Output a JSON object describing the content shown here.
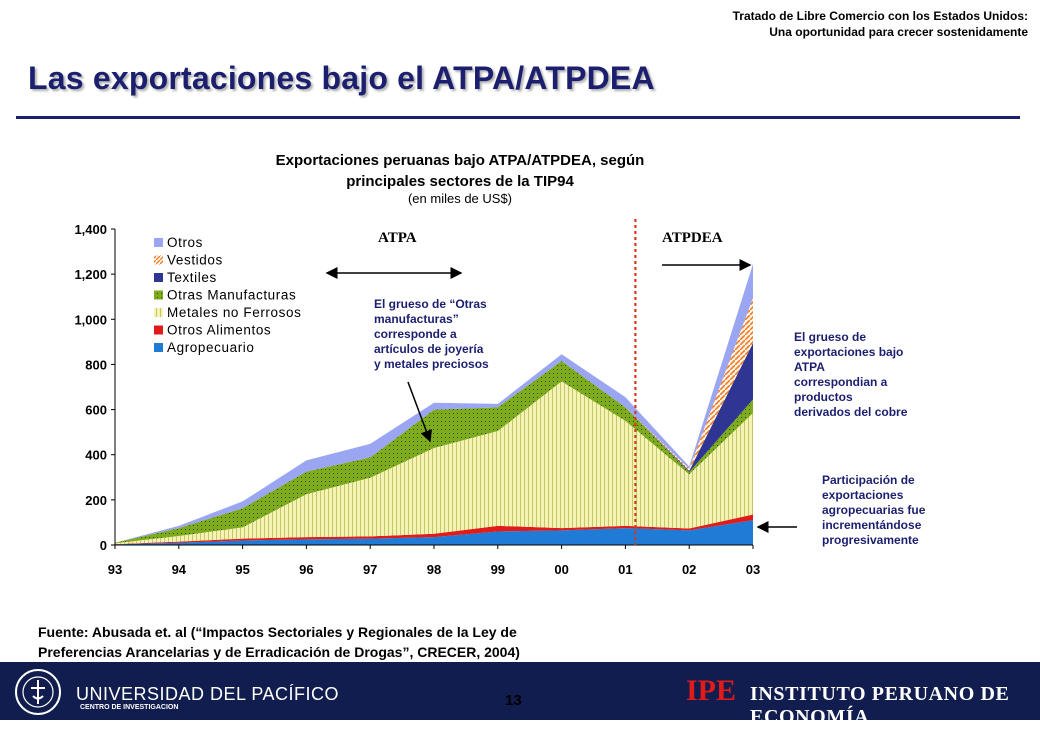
{
  "header": {
    "line1": "Tratado de Libre Comercio con los Estados Unidos:",
    "line2": "Una oportunidad  para crecer sostenidamente"
  },
  "slide_title": "Las exportaciones bajo el ATPA/ATPDEA",
  "chart_data": {
    "type": "area",
    "title_line1": "Exportaciones peruanas bajo ATPA/ATPDEA, según",
    "title_line2": "principales sectores de la TIP94",
    "subtitle": "(en miles de US$)",
    "x": [
      "93",
      "94",
      "95",
      "96",
      "97",
      "98",
      "99",
      "00",
      "01",
      "02",
      "03"
    ],
    "y_ticks": [
      "0",
      "200",
      "400",
      "600",
      "800",
      "1,000",
      "1,200",
      "1,400"
    ],
    "ylim": [
      0,
      1400
    ],
    "stacked": true,
    "series": [
      {
        "name": "Agropecuario",
        "color": "#1f7bd6",
        "values": [
          3,
          10,
          20,
          25,
          28,
          35,
          60,
          65,
          75,
          65,
          110
        ]
      },
      {
        "name": "Otros Alimentos",
        "color": "#e11a1a",
        "values": [
          1,
          5,
          8,
          10,
          10,
          15,
          25,
          10,
          10,
          8,
          25
        ]
      },
      {
        "name": "Metales no Ferrosos",
        "color": "#efefa0",
        "values": [
          4,
          25,
          50,
          190,
          260,
          380,
          420,
          650,
          465,
          240,
          450
        ]
      },
      {
        "name": "Otras Manufacturas",
        "color": "#7dab1c",
        "values": [
          2,
          35,
          85,
          100,
          90,
          170,
          105,
          90,
          60,
          10,
          60
        ]
      },
      {
        "name": "Textiles",
        "color": "#2e3592",
        "values": [
          0,
          0,
          0,
          0,
          0,
          0,
          0,
          0,
          0,
          5,
          250
        ]
      },
      {
        "name": "Vestidos",
        "color": "#f29a52",
        "values": [
          0,
          0,
          0,
          0,
          0,
          0,
          0,
          0,
          0,
          10,
          200
        ]
      },
      {
        "name": "Otros",
        "color": "#9aa6f2",
        "values": [
          0,
          10,
          30,
          50,
          60,
          30,
          15,
          30,
          45,
          10,
          150
        ]
      }
    ],
    "legend_order": [
      "Otros",
      "Vestidos",
      "Textiles",
      "Otras Manufacturas",
      "Metales no Ferrosos",
      "Otros Alimentos",
      "Agropecuario"
    ],
    "legend_position": "top-left",
    "divider_after": "01",
    "era_labels": {
      "atpa": "ATPA",
      "atpdea": "ATPDEA"
    }
  },
  "annotations": {
    "otras_manufacturas": [
      "El grueso de “Otras",
      "manufacturas”",
      "corresponde a",
      "artículos de joyería",
      "y metales preciosos"
    ],
    "cobre": [
      "El grueso de",
      "exportaciones bajo",
      "ATPA",
      "correspondian a",
      "productos",
      "derivados del cobre"
    ],
    "agro": [
      "Participación de",
      "exportaciones",
      "agropecuarias fue",
      "incrementándose",
      "progresivamente"
    ]
  },
  "source": {
    "line1": "Fuente: Abusada et. al (“Impactos Sectoriales y Regionales de la Ley de",
    "line2": "Preferencias Arancelarias y de Erradicación de Drogas”, CRECER, 2004)"
  },
  "footer": {
    "university": "UNIVERSIDAD DEL PACÍFICO",
    "centro": "CENTRO DE INVESTIGACION",
    "page": "13",
    "ipe": "IPE",
    "ipe_name": "INSTITUTO PERUANO DE ECONOMÍA"
  }
}
